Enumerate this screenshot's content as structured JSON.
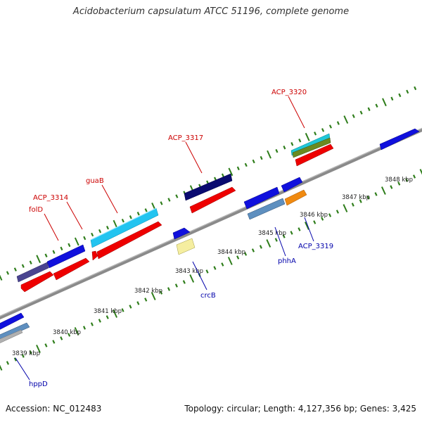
{
  "title": "Acidobacterium capsulatum ATCC 51196, complete genome",
  "footer": {
    "accession": "Accession: NC_012483",
    "summary": "Topology: circular; Length: 4,127,356 bp; Genes: 3,425"
  },
  "colors": {
    "backbone": "#888888",
    "tick": "#2e7d1a",
    "label_plus": "#cc0000",
    "label_minus": "#0000aa"
  },
  "scale_labels": [
    "3839 kbp",
    "3840 kbp",
    "3841 kbp",
    "3842 kbp",
    "3843 kbp",
    "3844 kbp",
    "3845 kbp",
    "3846 kbp",
    "3847 kbp",
    "3848 kbp"
  ],
  "gene_labels": {
    "plus": [
      "folD",
      "ACP_3314",
      "guaB",
      "ACP_3317",
      "ACP_3320"
    ],
    "minus": [
      "hppD",
      "crcB",
      "phhA",
      "ACP_3319"
    ]
  }
}
